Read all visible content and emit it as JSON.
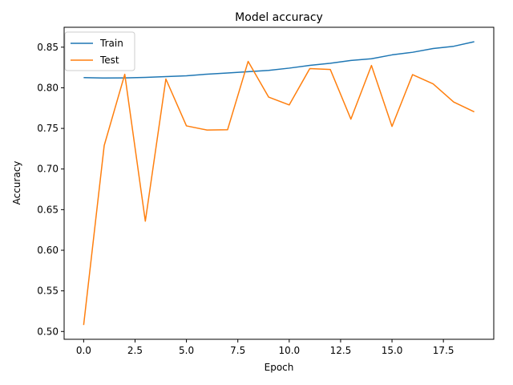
{
  "chart_data": {
    "type": "line",
    "title": "Model accuracy",
    "xlabel": "Epoch",
    "ylabel": "Accuracy",
    "xlim": [
      -0.95,
      19.95
    ],
    "ylim": [
      0.4904,
      0.8745
    ],
    "xticks": [
      0.0,
      2.5,
      5.0,
      7.5,
      10.0,
      12.5,
      15.0,
      17.5
    ],
    "xtick_labels": [
      "0.0",
      "2.5",
      "5.0",
      "7.5",
      "10.0",
      "12.5",
      "15.0",
      "17.5"
    ],
    "yticks": [
      0.5,
      0.55,
      0.6,
      0.65,
      0.7,
      0.75,
      0.8,
      0.85
    ],
    "ytick_labels": [
      "0.50",
      "0.55",
      "0.60",
      "0.65",
      "0.70",
      "0.75",
      "0.80",
      "0.85"
    ],
    "grid": false,
    "legend_position": "top-left",
    "x": [
      0,
      1,
      2,
      3,
      4,
      5,
      6,
      7,
      8,
      9,
      10,
      11,
      12,
      13,
      14,
      15,
      16,
      17,
      18,
      19
    ],
    "series": [
      {
        "name": "Train",
        "color": "#1f77b4",
        "values": [
          0.8125,
          0.812,
          0.8122,
          0.8128,
          0.8138,
          0.8148,
          0.8168,
          0.8182,
          0.8198,
          0.8214,
          0.8242,
          0.8276,
          0.8302,
          0.8337,
          0.8357,
          0.8405,
          0.8437,
          0.8483,
          0.8511,
          0.8567
        ]
      },
      {
        "name": "Test",
        "color": "#ff7f0e",
        "values": [
          0.508,
          0.729,
          0.8166,
          0.6358,
          0.8108,
          0.7531,
          0.748,
          0.7483,
          0.8325,
          0.7885,
          0.7789,
          0.8236,
          0.8225,
          0.7614,
          0.8275,
          0.7524,
          0.8162,
          0.8048,
          0.7825,
          0.7704
        ]
      }
    ]
  }
}
